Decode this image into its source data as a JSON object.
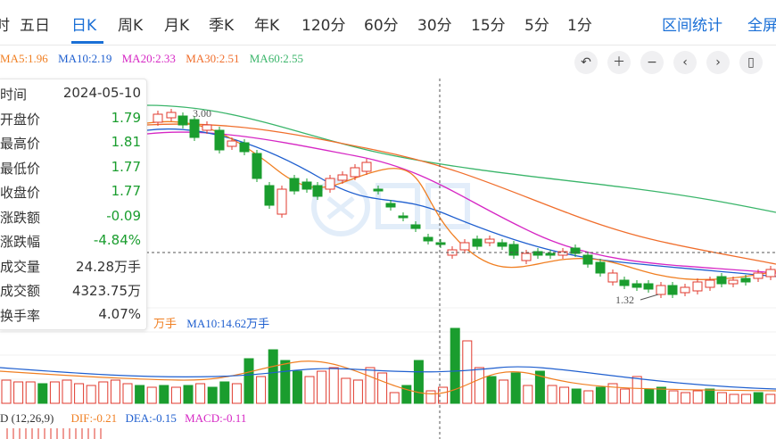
{
  "tabs": [
    "时",
    "五日",
    "日K",
    "周K",
    "月K",
    "季K",
    "年K",
    "120分",
    "60分",
    "30分",
    "15分",
    "5分",
    "1分"
  ],
  "active_tab": "日K",
  "links": {
    "range_stats": "区间统计",
    "fullscreen": "全屏"
  },
  "ma": {
    "ma5": "MA5:1.96",
    "ma10": "MA10:2.19",
    "ma20": "MA20:2.33",
    "ma30": "MA30:2.51",
    "ma60": "MA60:2.55"
  },
  "toolbar_icons": [
    "undo-icon",
    "zoom-in-icon",
    "zoom-out-icon",
    "pan-left-icon",
    "pan-right-icon",
    "candle-type-icon"
  ],
  "info": [
    {
      "label": "时间",
      "value": "2024-05-10",
      "color": "#333333"
    },
    {
      "label": "开盘价",
      "value": "1.79",
      "color": "#1a9d2e"
    },
    {
      "label": "最高价",
      "value": "1.81",
      "color": "#1a9d2e"
    },
    {
      "label": "最低价",
      "value": "1.77",
      "color": "#1a9d2e"
    },
    {
      "label": "收盘价",
      "value": "1.77",
      "color": "#1a9d2e"
    },
    {
      "label": "涨跌额",
      "value": "-0.09",
      "color": "#1a9d2e"
    },
    {
      "label": "涨跌幅",
      "value": "-4.84%",
      "color": "#1a9d2e"
    },
    {
      "label": "成交量",
      "value": "24.28万手",
      "color": "#333333"
    },
    {
      "label": "成交额",
      "value": "4323.75万",
      "color": "#333333"
    },
    {
      "label": "换手率",
      "value": "4.07%",
      "color": "#333333"
    }
  ],
  "price_labels": {
    "high": "3.00",
    "low": "1.32"
  },
  "volume": {
    "ma5_partial": "万手",
    "ma10": "MA10:14.62万手"
  },
  "macd": {
    "title": "D (12,26,9)",
    "dif": "DIF:-0.21",
    "dea": "DEA:-0.15",
    "macd": "MACD:-0.11"
  },
  "colors": {
    "accent": "#1a6fd6",
    "up": "#e03a2e",
    "down": "#1a9d2e",
    "ma5": "#f07f22",
    "ma10": "#1f5fcf",
    "ma20": "#d627c4",
    "ma30": "#f06e2c",
    "ma60": "#3ab56a"
  }
}
